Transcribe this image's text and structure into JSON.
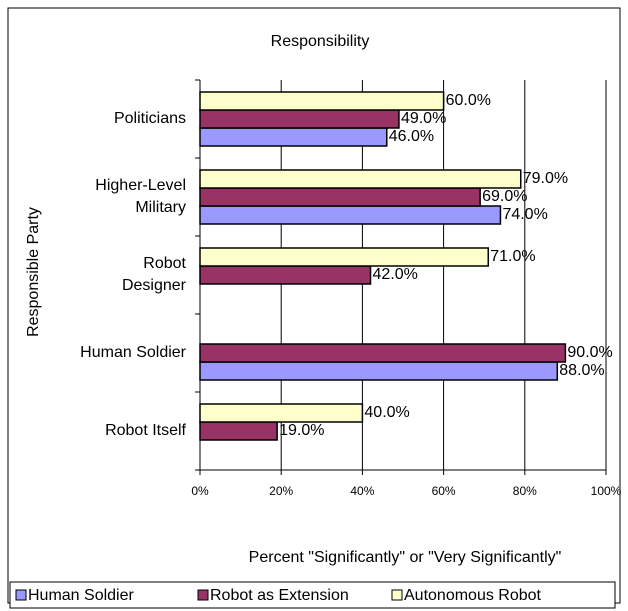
{
  "chart_data": {
    "type": "bar",
    "orientation": "horizontal",
    "title": "Responsibility",
    "x_label": "Percent \"Significantly\" or \"Very Significantly\"",
    "y_label": "Responsible Party",
    "categories": [
      "Politicians",
      "Higher-Level\nMilitary",
      "Robot\nDesigner",
      "Human Soldier",
      "Robot Itself"
    ],
    "series": [
      {
        "name": "Human Soldier",
        "color": "#9999ff",
        "values": [
          46,
          74,
          null,
          88,
          null
        ],
        "value_labels": [
          "46.0%",
          "74.0%",
          null,
          "88.0%",
          null
        ]
      },
      {
        "name": "Robot as Extension",
        "color": "#993366",
        "values": [
          49,
          69,
          42,
          90,
          19
        ],
        "value_labels": [
          "49.0%",
          "69.0%",
          "42.0%",
          "90.0%",
          "19.0%"
        ]
      },
      {
        "name": "Autonomous Robot",
        "color": "#ffffcc",
        "values": [
          60,
          79,
          71,
          null,
          40
        ],
        "value_labels": [
          "60.0%",
          "79.0%",
          "71.0%",
          null,
          "40.0%"
        ]
      }
    ],
    "xlim": [
      0,
      100
    ],
    "xticks": [
      {
        "value": 0,
        "label": "0%"
      },
      {
        "value": 20,
        "label": "20%"
      },
      {
        "value": 40,
        "label": "40%"
      },
      {
        "value": 60,
        "label": "60%"
      },
      {
        "value": 80,
        "label": "80%"
      },
      {
        "value": 100,
        "label": "100%"
      }
    ],
    "grid": true,
    "legend": "bottom"
  }
}
